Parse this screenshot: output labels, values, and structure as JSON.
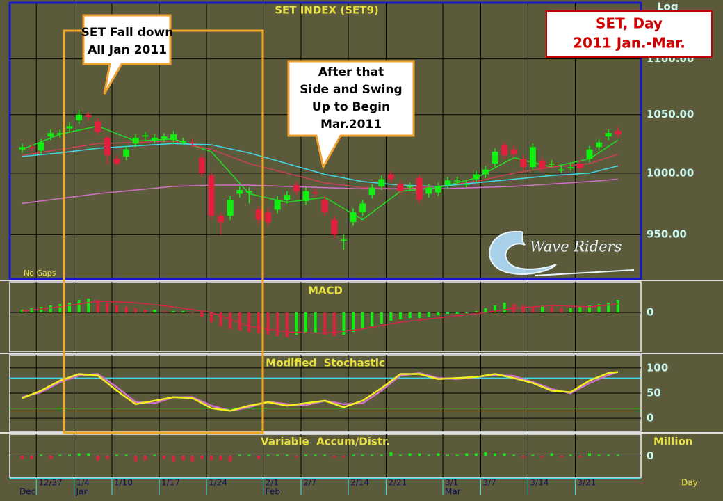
{
  "chart_data": [
    {
      "type": "candlestick",
      "title": "SET INDEX (SET9)",
      "scale_label": "Log",
      "note": "No Gaps",
      "categories": [
        null,
        null,
        "12/27",
        null,
        null,
        null,
        "1/4",
        null,
        null,
        null,
        "1/10",
        null,
        null,
        null,
        null,
        "1/17",
        null,
        null,
        null,
        null,
        "1/24",
        null,
        null,
        null,
        null,
        null,
        "2/1",
        null,
        null,
        null,
        "2/7",
        null,
        null,
        null,
        null,
        "2/14",
        null,
        null,
        null,
        "2/21",
        null,
        null,
        null,
        null,
        null,
        "3/1",
        null,
        null,
        null,
        "3/7",
        null,
        null,
        null,
        null,
        "3/14",
        null,
        null,
        null,
        null,
        "3/21",
        null,
        null,
        null,
        null
      ],
      "month_labels": [
        "Dec",
        "Jan",
        "Feb",
        "Mar"
      ],
      "month_starts": [
        0,
        6,
        26,
        45
      ],
      "open": [
        1020,
        1022,
        1019,
        1031,
        1033,
        1038,
        1045,
        1050,
        1044,
        1030,
        1012,
        1014,
        1025,
        1031,
        1028,
        1029,
        1028,
        1027,
        1026,
        1013,
        998,
        965,
        965,
        983,
        984,
        970,
        968,
        970,
        978,
        990,
        977,
        984,
        978,
        962,
        946,
        960,
        968,
        982,
        989,
        999,
        991,
        989,
        996,
        983,
        984,
        990,
        994,
        991,
        995,
        999,
        1008,
        1024,
        1020,
        1012,
        1005,
        1010,
        1008,
        1003,
        1005,
        1008,
        1012,
        1022,
        1031,
        1036
      ],
      "high": [
        1025,
        1025,
        1029,
        1037,
        1037,
        1043,
        1054,
        1052,
        1047,
        1032,
        1015,
        1023,
        1033,
        1035,
        1033,
        1034,
        1036,
        1030,
        1029,
        1016,
        1001,
        968,
        981,
        989,
        988,
        973,
        971,
        981,
        985,
        993,
        988,
        987,
        981,
        965,
        950,
        971,
        978,
        991,
        998,
        1002,
        994,
        992,
        999,
        991,
        992,
        997,
        997,
        994,
        1002,
        1006,
        1021,
        1027,
        1023,
        1015,
        1025,
        1013,
        1011,
        1006,
        1008,
        1011,
        1023,
        1029,
        1037,
        1039
      ],
      "low": [
        1017,
        1018,
        1016,
        1028,
        1030,
        1035,
        1042,
        1045,
        1032,
        1007,
        1006,
        1011,
        1022,
        1028,
        1025,
        1026,
        1025,
        1024,
        1022,
        997,
        962,
        950,
        962,
        980,
        975,
        959,
        957,
        967,
        975,
        982,
        974,
        980,
        965,
        947,
        938,
        957,
        965,
        979,
        986,
        992,
        982,
        986,
        975,
        980,
        981,
        987,
        991,
        988,
        992,
        996,
        1005,
        1012,
        1013,
        1002,
        1002,
        1001,
        1005,
        1000,
        1002,
        1001,
        1009,
        1019,
        1028,
        1030
      ],
      "close": [
        1022,
        1021,
        1026,
        1034,
        1034,
        1040,
        1050,
        1048,
        1035,
        1015,
        1008,
        1020,
        1030,
        1032,
        1030,
        1031,
        1033,
        1027,
        1025,
        1000,
        965,
        960,
        978,
        986,
        985,
        962,
        960,
        978,
        982,
        985,
        985,
        983,
        968,
        950,
        946,
        968,
        975,
        988,
        995,
        995,
        985,
        989,
        978,
        988,
        989,
        994,
        994,
        991,
        999,
        1003,
        1018,
        1015,
        1016,
        1005,
        1022,
        1004,
        1008,
        1003,
        1005,
        1004,
        1020,
        1026,
        1034,
        1033
      ],
      "up_color": "#11ee11",
      "down_color": "#e0203c",
      "ylim": [
        916,
        1152
      ],
      "log": true,
      "grid": true,
      "yticks": [
        {
          "value": 950,
          "label": "950.00"
        },
        {
          "value": 1000,
          "label": "1000.00"
        },
        {
          "value": 1050,
          "label": "1050.00"
        },
        {
          "value": 1100,
          "label": "1100.00"
        }
      ],
      "lines": {
        "x": [
          0,
          4,
          8,
          12,
          16,
          20,
          24,
          28,
          32,
          36,
          40,
          44,
          48,
          52,
          56,
          60,
          63
        ],
        "series": [
          {
            "color": "#22dd22",
            "values": [
              1020,
              1033,
              1040,
              1027,
              1029,
              1018,
              983,
              976,
              980,
              962,
              985,
              988,
              996,
              1013,
              1005,
              1012,
              1028
            ]
          },
          {
            "color": "#c84058",
            "values": [
              1015,
              1020,
              1025,
              1026,
              1027,
              1020,
              1008,
              1000,
              992,
              988,
              987,
              989,
              993,
              1000,
              1005,
              1008,
              1016
            ]
          },
          {
            "color": "#40d8e8",
            "values": [
              1014,
              1017,
              1021,
              1023,
              1025,
              1024,
              1017,
              1008,
              999,
              993,
              990,
              989,
              992,
              995,
              998,
              1000,
              1006
            ]
          },
          {
            "color": "#d070c8",
            "values": [
              975,
              979,
              983,
              986,
              989,
              990,
              990,
              989,
              988,
              987,
              987,
              987,
              988,
              989,
              991,
              993,
              995
            ]
          }
        ]
      }
    },
    {
      "type": "bar",
      "title": "MACD",
      "color_rule": "change",
      "values": [
        2,
        3,
        4,
        5,
        6,
        7,
        9,
        10,
        9,
        7,
        5,
        4,
        3,
        2,
        2,
        1,
        1,
        1,
        0,
        -3,
        -7,
        -10,
        -12,
        -13,
        -14,
        -15,
        -16,
        -17,
        -18,
        -16,
        -15,
        -15,
        -16,
        -17,
        -16,
        -14,
        -12,
        -10,
        -8,
        -6,
        -5,
        -4,
        -4,
        -3,
        -2,
        -1,
        -1,
        0,
        1,
        3,
        5,
        7,
        6,
        5,
        4,
        5,
        4,
        3,
        3,
        4,
        5,
        6,
        7,
        9
      ],
      "up_color": "#11ee11",
      "down_color": "#e0203c",
      "ylim": [
        -28,
        22
      ],
      "yticks": [
        0
      ],
      "lines": {
        "x": [
          0,
          4,
          8,
          12,
          16,
          20,
          24,
          28,
          32,
          36,
          40,
          44,
          48,
          52,
          56,
          60,
          63
        ],
        "series": [
          {
            "color": "#d02848",
            "values": [
              1,
              4,
              8,
              7,
              4,
              0,
              -10,
              -14,
              -15,
              -12,
              -7,
              -4,
              -1,
              3,
              5,
              4,
              6
            ]
          }
        ]
      }
    },
    {
      "type": "line",
      "title": "Modified  Stochastic",
      "ylim": [
        -26,
        126
      ],
      "yticks": [
        0,
        50,
        100
      ],
      "levels": [
        {
          "value": 80,
          "color": "#40d8e8"
        },
        {
          "value": 20,
          "color": "#22dd22"
        }
      ],
      "lines": {
        "x": [
          0,
          2,
          4,
          6,
          8,
          10,
          12,
          14,
          16,
          18,
          20,
          22,
          24,
          26,
          28,
          30,
          32,
          34,
          36,
          38,
          40,
          42,
          44,
          46,
          48,
          50,
          52,
          54,
          56,
          58,
          60,
          62,
          63
        ],
        "series": [
          {
            "color": "#d070c8",
            "values": [
              42,
              52,
              72,
              85,
              88,
              62,
              32,
              30,
              42,
              42,
              25,
              15,
              22,
              33,
              28,
              26,
              35,
              28,
              30,
              55,
              85,
              90,
              80,
              78,
              82,
              86,
              84,
              72,
              58,
              50,
              70,
              86,
              92
            ]
          },
          {
            "color": "#f0f020",
            "values": [
              40,
              55,
              75,
              88,
              85,
              55,
              28,
              35,
              42,
              40,
              20,
              15,
              25,
              32,
              25,
              30,
              35,
              22,
              35,
              60,
              88,
              88,
              78,
              80,
              82,
              88,
              80,
              70,
              55,
              52,
              75,
              90,
              92
            ]
          }
        ]
      }
    },
    {
      "type": "bar",
      "title": "Variable  Accum/Distr.",
      "unit_label": "Million",
      "xlabel": "Day",
      "color_rule": "sign",
      "values": [
        -2,
        -2,
        1,
        -2,
        1,
        1,
        2,
        2,
        -3,
        -2,
        1,
        1,
        -4,
        -3,
        1,
        -2,
        -4,
        -3,
        -4,
        -2,
        -3,
        -3,
        -4,
        1,
        1,
        -2,
        1,
        1,
        1,
        -1,
        1,
        1,
        1,
        -1,
        -1,
        1,
        1,
        1,
        1,
        3,
        1,
        2,
        2,
        1,
        2,
        1,
        1,
        2,
        2,
        3,
        2,
        2,
        1,
        -1,
        1,
        -1,
        2,
        -1,
        1,
        -1,
        2,
        1,
        1,
        1
      ],
      "up_color": "#11ee11",
      "down_color": "#e0203c",
      "ylim": [
        -15.5,
        16
      ],
      "yticks": [
        0
      ]
    }
  ],
  "callouts": [
    {
      "lines": [
        "SET Fall down",
        "All Jan 2011"
      ]
    },
    {
      "lines": [
        "After that",
        "Side and Swing",
        "Up to Begin",
        "Mar.2011"
      ]
    }
  ],
  "badge": {
    "lines": [
      "SET, Day",
      "2011 Jan.-Mar."
    ]
  },
  "logo": "Wave Riders"
}
